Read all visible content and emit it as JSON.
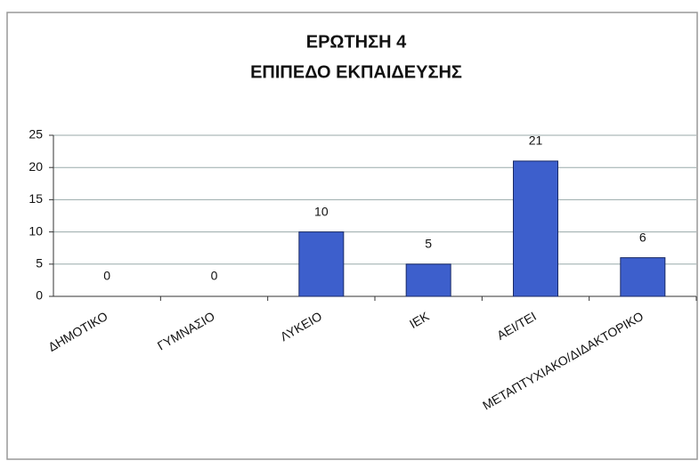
{
  "chart_data": {
    "type": "bar",
    "title": [
      "ΕΡΩΤΗΣΗ 4",
      "ΕΠΙΠΕΔΟ ΕΚΠΑΙΔΕΥΣΗΣ"
    ],
    "categories": [
      "ΔΗΜΟΤΙΚΟ",
      "ΓΥΜΝΑΣΙΟ",
      "ΛΥΚΕΙΟ",
      "ΙΕΚ",
      "ΑΕΙ/ΤΕΙ",
      "ΜΕΤΑΠΤΥΧΙΑΚΟ/ΔΙΔΑΚΤΟΡΙΚΟ"
    ],
    "values": [
      0,
      0,
      10,
      5,
      21,
      6
    ],
    "color": "#3d5fcc",
    "ylim": [
      0,
      25
    ],
    "yticks": [
      0,
      5,
      10,
      15,
      20,
      25
    ],
    "grid": true
  }
}
